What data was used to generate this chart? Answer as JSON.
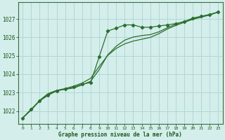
{
  "bg_color": "#d4eeec",
  "grid_color": "#b0d8d4",
  "line_color": "#2d6e2d",
  "marker_color": "#2d6e2d",
  "xlabel": "Graphe pression niveau de la mer (hPa)",
  "xlabel_color": "#1a5a1a",
  "ylabel_color": "#1a5a1a",
  "xlim": [
    -0.5,
    23.5
  ],
  "ylim": [
    1021.3,
    1027.9
  ],
  "yticks": [
    1022,
    1023,
    1024,
    1025,
    1026,
    1027
  ],
  "xticks": [
    0,
    1,
    2,
    3,
    4,
    5,
    6,
    7,
    8,
    9,
    10,
    11,
    12,
    13,
    14,
    15,
    16,
    17,
    18,
    19,
    20,
    21,
    22,
    23
  ],
  "main_x": [
    0,
    1,
    2,
    3,
    4,
    5,
    6,
    7,
    8,
    9,
    10,
    11,
    12,
    13,
    14,
    15,
    16,
    17,
    18,
    19,
    20,
    21,
    22,
    23
  ],
  "main_y": [
    1021.62,
    1022.1,
    1022.55,
    1022.85,
    1023.1,
    1023.2,
    1023.3,
    1023.45,
    1023.55,
    1024.95,
    1026.35,
    1026.5,
    1026.68,
    1026.68,
    1026.55,
    1026.55,
    1026.62,
    1026.68,
    1026.75,
    1026.85,
    1027.05,
    1027.15,
    1027.25,
    1027.38
  ],
  "smooth1_x": [
    0,
    1,
    2,
    3,
    4,
    5,
    6,
    7,
    8,
    9,
    10,
    11,
    12,
    13,
    14,
    15,
    16,
    17,
    18,
    19,
    20,
    21,
    22,
    23
  ],
  "smooth1_y": [
    1021.62,
    1022.05,
    1022.55,
    1022.9,
    1023.1,
    1023.18,
    1023.25,
    1023.42,
    1023.62,
    1024.25,
    1025.05,
    1025.52,
    1025.85,
    1026.02,
    1026.1,
    1026.15,
    1026.3,
    1026.52,
    1026.72,
    1026.87,
    1027.02,
    1027.12,
    1027.23,
    1027.38
  ],
  "smooth2_x": [
    0,
    1,
    2,
    3,
    4,
    5,
    6,
    7,
    8,
    9,
    10,
    11,
    12,
    13,
    14,
    15,
    16,
    17,
    18,
    19,
    20,
    21,
    22,
    23
  ],
  "smooth2_y": [
    1021.62,
    1022.08,
    1022.58,
    1022.95,
    1023.12,
    1023.22,
    1023.35,
    1023.52,
    1023.78,
    1024.42,
    1025.02,
    1025.4,
    1025.65,
    1025.8,
    1025.9,
    1026.0,
    1026.2,
    1026.45,
    1026.65,
    1026.82,
    1026.98,
    1027.1,
    1027.22,
    1027.38
  ]
}
